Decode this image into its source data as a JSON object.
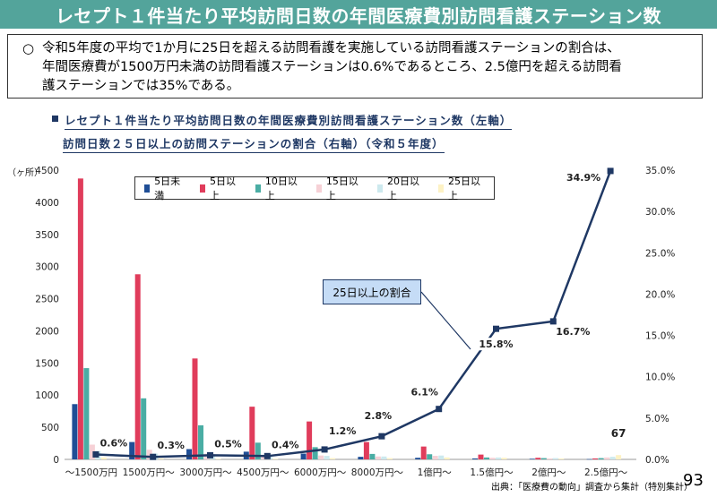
{
  "title": "レセプト１件当たり平均訪問日数の年間医療費別訪問看護ステーション数",
  "summary": {
    "bullet": "○",
    "text": "令和5年度の平均で1か月に25日を超える訪問看護を実施している訪問看護ステーションの割合は、\n年間医療費が1500万円未満の訪問看護ステーションは0.6%であるところ、2.5億円を超える訪問看\n護ステーションでは35%である。"
  },
  "subheading_1": "レセプト１件当たり平均訪問日数の年間医療費別訪問看護ステーション数（左軸）",
  "subheading_2": "訪問日数２５日以上の訪問ステーションの割合（右軸）（令和５年度）",
  "source": "出典：「医療費の動向」調査から集計（特別集計）",
  "page_number": "93",
  "colors": {
    "title_bg": "#53a49b",
    "navy": "#1f3864",
    "series": [
      "#1f4e96",
      "#e03c5b",
      "#4aada4",
      "#f6d1d6",
      "#cde9ee",
      "#fdf2c4"
    ]
  },
  "chart_data": {
    "type": "bar",
    "left_axis_unit": "（ヶ所）",
    "categories": [
      "～1500万円",
      "1500万円～",
      "3000万円～",
      "4500万円～",
      "6000万円～",
      "8000万円～",
      "1億円～",
      "1.5億円～",
      "2億円～",
      "2.5億円～"
    ],
    "ylim": [
      0,
      4500
    ],
    "yticks": [
      "0",
      "500",
      "1000",
      "1500",
      "2000",
      "2500",
      "3000",
      "3500",
      "4000",
      "4500"
    ],
    "y2lim": [
      0,
      35
    ],
    "y2ticks": [
      "0.0%",
      "5.0%",
      "10.0%",
      "15.0%",
      "20.0%",
      "25.0%",
      "30.0%",
      "35.0%"
    ],
    "grid": false,
    "legend_position": "top",
    "series": [
      {
        "name": "5日未満",
        "values": [
          860,
          270,
          160,
          120,
          90,
          40,
          25,
          15,
          10,
          5
        ]
      },
      {
        "name": "5日以上",
        "values": [
          4370,
          2880,
          1570,
          820,
          590,
          270,
          200,
          75,
          25,
          15
        ]
      },
      {
        "name": "10日以上",
        "values": [
          1420,
          950,
          530,
          260,
          190,
          85,
          80,
          30,
          20,
          20
        ]
      },
      {
        "name": "15日以上",
        "values": [
          230,
          150,
          90,
          60,
          60,
          45,
          55,
          25,
          15,
          30
        ]
      },
      {
        "name": "20日以上",
        "values": [
          130,
          90,
          60,
          40,
          55,
          45,
          60,
          30,
          20,
          40
        ]
      },
      {
        "name": "25日以上",
        "values": [
          30,
          15,
          10,
          10,
          20,
          20,
          30,
          25,
          15,
          67
        ]
      }
    ],
    "line": {
      "name": "25日以上の割合",
      "values": [
        0.6,
        0.3,
        0.5,
        0.4,
        1.2,
        2.8,
        6.1,
        15.8,
        16.7,
        34.9
      ],
      "labels": [
        "0.6%",
        "0.3%",
        "0.5%",
        "0.4%",
        "1.2%",
        "2.8%",
        "6.1%",
        "15.8%",
        "16.7%",
        "34.9%"
      ]
    },
    "bar_annotation": "67"
  }
}
